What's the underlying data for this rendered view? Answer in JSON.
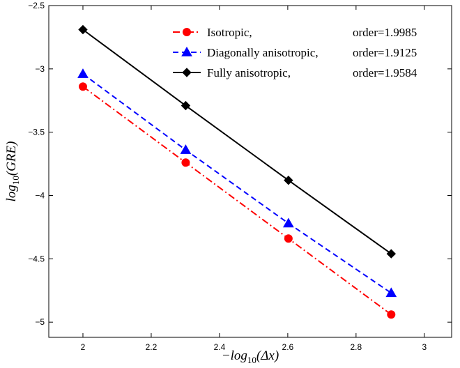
{
  "chart_data": {
    "type": "line",
    "title": "",
    "xlabel": {
      "main": "−log",
      "sub": "10",
      "rest": "(Δx)"
    },
    "ylabel": {
      "main": "log",
      "sub": "10",
      "rest": "(GRE)"
    },
    "xlim": [
      1.9,
      3.08
    ],
    "ylim": [
      -5.12,
      -2.5
    ],
    "xticks": [
      2,
      2.2,
      2.4,
      2.6,
      2.8,
      3
    ],
    "xtick_labels": [
      "2",
      "2.2",
      "2.4",
      "2.6",
      "2.8",
      "3"
    ],
    "yticks": [
      -5,
      -4.5,
      -4,
      -3.5,
      -3,
      -2.5
    ],
    "ytick_labels": [
      "−5",
      "−4.5",
      "−4",
      "−3.5",
      "−3",
      "−2.5"
    ],
    "grid": false,
    "legend_position": "top-right",
    "series": [
      {
        "name": "Isotropic,",
        "order_label": "order=1.9985",
        "color": "#ff0000",
        "line_style": "dash-dot",
        "marker": "circle",
        "x": [
          2.0,
          2.301,
          2.602,
          2.903
        ],
        "y": [
          -3.14,
          -3.74,
          -4.34,
          -4.94
        ]
      },
      {
        "name": "Diagonally anisotropic,",
        "order_label": "order=1.9125",
        "color": "#0000ff",
        "line_style": "dashed",
        "marker": "triangle",
        "x": [
          2.0,
          2.301,
          2.602,
          2.903
        ],
        "y": [
          -3.04,
          -3.64,
          -4.22,
          -4.77
        ]
      },
      {
        "name": "Fully anisotropic,",
        "order_label": "order=1.9584",
        "color": "#000000",
        "line_style": "solid",
        "marker": "diamond",
        "x": [
          2.0,
          2.301,
          2.602,
          2.903
        ],
        "y": [
          -2.69,
          -3.29,
          -3.88,
          -4.46
        ]
      }
    ]
  }
}
